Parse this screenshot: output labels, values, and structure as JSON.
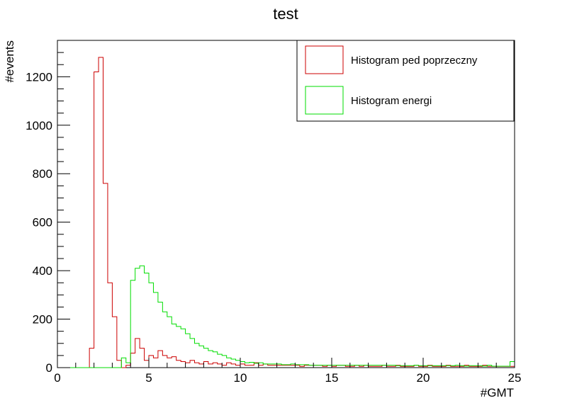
{
  "chart_data": {
    "type": "histogram",
    "title": "test",
    "xlabel": "#GMT",
    "ylabel": "#events",
    "xlim": [
      0,
      25
    ],
    "ylim": [
      0,
      1350
    ],
    "bin_width": 0.25,
    "x_ticks": [
      0,
      5,
      10,
      15,
      20,
      25
    ],
    "y_ticks": [
      0,
      200,
      400,
      600,
      800,
      1000,
      1200
    ],
    "legend_position": "top-right",
    "series": [
      {
        "name": "Histogram ped poprzeczny",
        "color": "#cc0000",
        "values": [
          0,
          0,
          0,
          0,
          0,
          0,
          0,
          80,
          1220,
          1280,
          760,
          350,
          210,
          30,
          0,
          10,
          60,
          120,
          80,
          30,
          50,
          40,
          70,
          50,
          40,
          45,
          30,
          25,
          20,
          30,
          20,
          15,
          25,
          15,
          20,
          15,
          10,
          20,
          15,
          10,
          15,
          10,
          10,
          20,
          10,
          15,
          10,
          10,
          10,
          10,
          10,
          10,
          10,
          5,
          10,
          10,
          10,
          10,
          5,
          10,
          5,
          10,
          10,
          5,
          5,
          10,
          5,
          10,
          5,
          5,
          5,
          10,
          5,
          5,
          10,
          5,
          5,
          5,
          10,
          5,
          5,
          10,
          5,
          5,
          5,
          10,
          5,
          5,
          5,
          10,
          5,
          5,
          5,
          10,
          5,
          5,
          5,
          5,
          5,
          5
        ]
      },
      {
        "name": "Histogram energi",
        "color": "#00dd00",
        "values": [
          0,
          0,
          0,
          0,
          0,
          0,
          0,
          0,
          0,
          0,
          0,
          0,
          0,
          0,
          40,
          20,
          360,
          410,
          420,
          390,
          350,
          310,
          270,
          230,
          210,
          180,
          170,
          160,
          140,
          120,
          100,
          90,
          80,
          70,
          65,
          55,
          50,
          40,
          35,
          30,
          25,
          20,
          22,
          18,
          20,
          15,
          15,
          15,
          15,
          12,
          12,
          15,
          12,
          12,
          12,
          10,
          10,
          10,
          10,
          10,
          10,
          10,
          10,
          10,
          10,
          10,
          10,
          10,
          10,
          10,
          10,
          10,
          10,
          10,
          8,
          8,
          8,
          8,
          10,
          8,
          8,
          8,
          8,
          8,
          8,
          8,
          8,
          10,
          8,
          6,
          8,
          8,
          8,
          6,
          10,
          6,
          6,
          6,
          6,
          25
        ]
      }
    ]
  }
}
